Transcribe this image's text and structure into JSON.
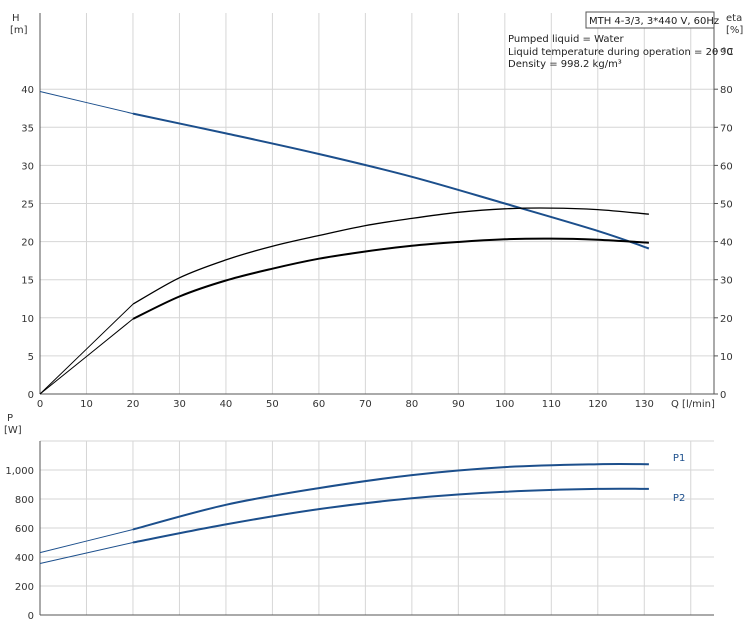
{
  "colors": {
    "blue": "#1c4f8c",
    "black": "#000000",
    "grid": "#d6d6d6",
    "axis": "#555555"
  },
  "header": {
    "model": "MTH 4-3/3, 3*440 V, 60Hz",
    "liquid": "Pumped liquid = Water",
    "temperature": "Liquid temperature during operation = 20 °C",
    "density": "Density = 998.2 kg/m³"
  },
  "chart_data": [
    {
      "type": "line",
      "panel": "head-efficiency",
      "ylabel_left": [
        "H",
        "[m]"
      ],
      "ylabel_right": [
        "eta",
        "[%]"
      ],
      "xlabel": "Q [l/min]",
      "xlim": [
        0,
        145
      ],
      "ylim": [
        0,
        50
      ],
      "ylim_right": [
        0,
        100
      ],
      "x_ticks": [
        0,
        10,
        20,
        30,
        40,
        50,
        60,
        70,
        80,
        90,
        100,
        110,
        120,
        130
      ],
      "y_ticks": [
        0,
        5,
        10,
        15,
        20,
        25,
        30,
        35,
        40
      ],
      "y_ticks_right": [
        0,
        10,
        20,
        30,
        40,
        50,
        60,
        70,
        80,
        90
      ],
      "grid": true,
      "series": [
        {
          "key": "head",
          "axis": "left",
          "color": "#1c4f8c",
          "x": [
            0,
            20,
            40,
            60,
            80,
            100,
            120,
            131
          ],
          "y": [
            39.7,
            36.8,
            34.2,
            31.5,
            28.5,
            25.0,
            21.4,
            19.1
          ]
        },
        {
          "key": "efficiency_upper",
          "axis": "right",
          "color": "#000000",
          "x": [
            0,
            20,
            30,
            40,
            50,
            60,
            70,
            80,
            90,
            100,
            110,
            120,
            131
          ],
          "y": [
            0,
            23.6,
            30.5,
            35.2,
            38.8,
            41.6,
            44.2,
            46.1,
            47.7,
            48.6,
            48.8,
            48.4,
            47.2
          ]
        },
        {
          "key": "efficiency_lower",
          "axis": "right",
          "color": "#000000",
          "x": [
            0,
            20,
            30,
            40,
            50,
            60,
            70,
            80,
            90,
            100,
            110,
            120,
            131
          ],
          "y": [
            0,
            19.7,
            25.6,
            29.8,
            32.9,
            35.5,
            37.4,
            38.9,
            39.9,
            40.6,
            40.8,
            40.5,
            39.7
          ]
        }
      ]
    },
    {
      "type": "line",
      "panel": "power",
      "ylabel": [
        "P",
        "[W]"
      ],
      "xlim": [
        0,
        145
      ],
      "ylim": [
        0,
        1200
      ],
      "y_ticks": [
        0,
        200,
        400,
        600,
        800,
        1000
      ],
      "y_tick_labels": [
        "0",
        "200",
        "400",
        "600",
        "800",
        "1,000"
      ],
      "grid": true,
      "series": [
        {
          "name": "P1",
          "color": "#1c4f8c",
          "x": [
            0,
            20,
            40,
            60,
            80,
            100,
            120,
            131
          ],
          "y": [
            430,
            590,
            760,
            875,
            965,
            1020,
            1040,
            1040
          ]
        },
        {
          "name": "P2",
          "color": "#1c4f8c",
          "x": [
            0,
            20,
            40,
            60,
            80,
            100,
            120,
            131
          ],
          "y": [
            355,
            500,
            625,
            730,
            805,
            850,
            870,
            870
          ]
        }
      ]
    }
  ]
}
